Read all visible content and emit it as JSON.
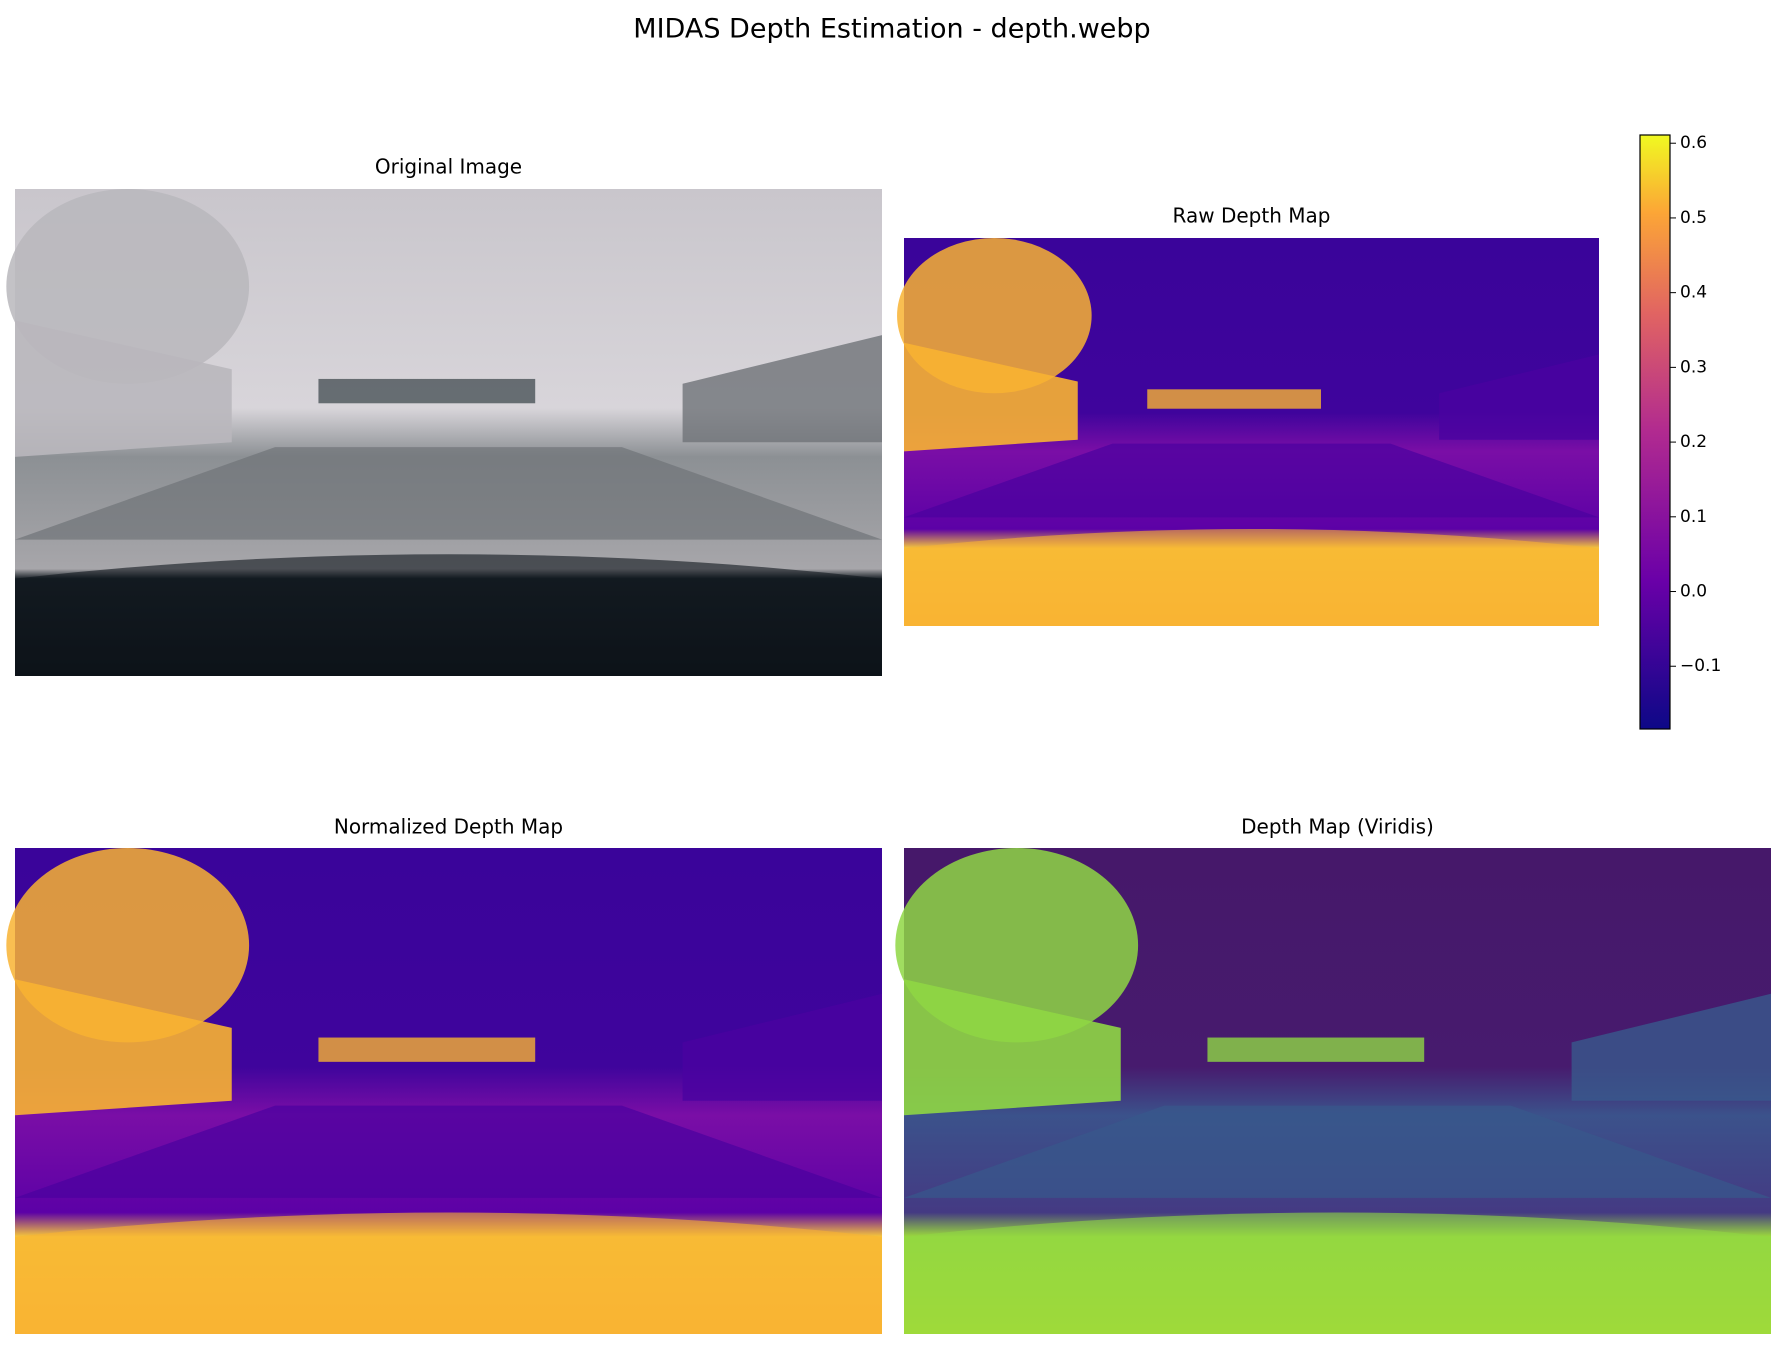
{
  "chart_data": {
    "type": "image-grid",
    "title": "MIDAS Depth Estimation - depth.webp",
    "panels": [
      "Original Image",
      "Raw Depth Map",
      "Normalized Depth Map",
      "Depth Map (Viridis)"
    ],
    "colorbar": {
      "colormap": "plasma",
      "ylim": [
        -0.184,
        0.611
      ],
      "yticks": [
        {
          "value": -0.1,
          "label": "−0.1"
        },
        {
          "value": 0,
          "label": "0.0"
        },
        0.1,
        0.2,
        0.3,
        0.4,
        0.5,
        0.6
      ]
    }
  }
}
